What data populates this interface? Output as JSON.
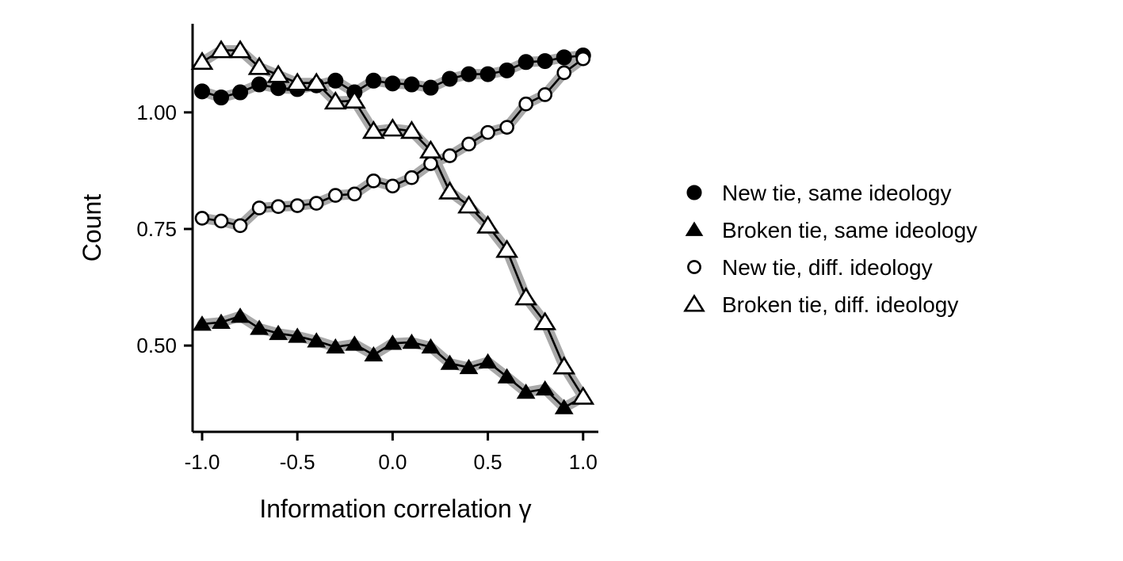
{
  "chart_data": {
    "type": "line",
    "xlabel": "Information correlation γ",
    "ylabel": "Count",
    "xlim": [
      -1.05,
      1.08
    ],
    "ylim": [
      0.315,
      1.19
    ],
    "xticks": [
      -1.0,
      -0.5,
      0.0,
      0.5,
      1.0
    ],
    "xtick_labels": [
      "-1.0",
      "-0.5",
      "0.0",
      "0.5",
      "1.0"
    ],
    "yticks": [
      0.5,
      0.75,
      1.0
    ],
    "ytick_labels": [
      "0.50",
      "0.75",
      "1.00"
    ],
    "grid": false,
    "legend_position": "right",
    "x": [
      -1.0,
      -0.9,
      -0.8,
      -0.7,
      -0.6,
      -0.5,
      -0.4,
      -0.3,
      -0.2,
      -0.1,
      0.0,
      0.1,
      0.2,
      0.3,
      0.4,
      0.5,
      0.6,
      0.7,
      0.8,
      0.9,
      1.0
    ],
    "series": [
      {
        "name": "New tie, same ideology",
        "marker": "circle-filled",
        "values": [
          1.045,
          1.032,
          1.043,
          1.06,
          1.052,
          1.05,
          1.058,
          1.068,
          1.043,
          1.068,
          1.062,
          1.06,
          1.053,
          1.072,
          1.082,
          1.082,
          1.09,
          1.108,
          1.11,
          1.118,
          1.122
        ]
      },
      {
        "name": "Broken tie, same ideology",
        "marker": "triangle-filled",
        "values": [
          0.546,
          0.55,
          0.563,
          0.537,
          0.526,
          0.52,
          0.51,
          0.497,
          0.503,
          0.48,
          0.505,
          0.507,
          0.497,
          0.462,
          0.453,
          0.465,
          0.433,
          0.4,
          0.407,
          0.367,
          0.39
        ]
      },
      {
        "name": "New tie, diff. ideology",
        "marker": "circle-open",
        "values": [
          0.773,
          0.767,
          0.757,
          0.795,
          0.798,
          0.8,
          0.805,
          0.822,
          0.825,
          0.853,
          0.842,
          0.86,
          0.89,
          0.907,
          0.932,
          0.957,
          0.968,
          1.018,
          1.038,
          1.085,
          1.115
        ]
      },
      {
        "name": "Broken tie, diff. ideology",
        "marker": "triangle-open",
        "values": [
          1.108,
          1.133,
          1.133,
          1.097,
          1.08,
          1.063,
          1.063,
          1.023,
          1.025,
          0.96,
          0.965,
          0.96,
          0.918,
          0.83,
          0.8,
          0.757,
          0.705,
          0.603,
          0.55,
          0.455,
          0.39
        ]
      }
    ]
  }
}
